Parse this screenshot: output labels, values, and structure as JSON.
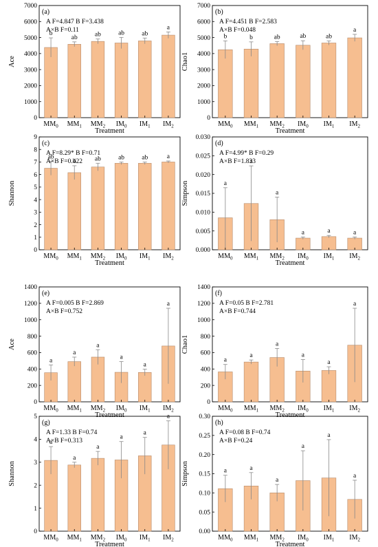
{
  "bar_color": "#F6BE90",
  "bar_edge": "#B58A6A",
  "error_color": "#888888",
  "chart_data": [
    {
      "type": "bar",
      "panel": "(a)",
      "ylabel": "Ace",
      "xlabel": "Treatment",
      "categories": [
        "MM0",
        "MM1",
        "MM2",
        "IM0",
        "IM1",
        "IM2"
      ],
      "ylim": [
        0,
        7000
      ],
      "yticks": [
        0,
        1000,
        2000,
        3000,
        4000,
        5000,
        6000,
        7000
      ],
      "values": [
        4380,
        4580,
        4760,
        4660,
        4790,
        5150
      ],
      "errors": [
        600,
        150,
        150,
        350,
        180,
        200
      ],
      "letters": [
        "b",
        "ab",
        "ab",
        "ab",
        "ab",
        "a"
      ],
      "stats": [
        "A F=4.847  B F=3.438",
        "A×B  F=0.11"
      ]
    },
    {
      "type": "bar",
      "panel": "(b)",
      "ylabel": "Chao1",
      "xlabel": "Treatment",
      "categories": [
        "MM0",
        "MM1",
        "MM2",
        "IM0",
        "IM1",
        "IM2"
      ],
      "ylim": [
        0,
        7000
      ],
      "yticks": [
        0,
        1000,
        2000,
        3000,
        4000,
        5000,
        6000,
        7000
      ],
      "values": [
        4240,
        4280,
        4620,
        4520,
        4660,
        4980
      ],
      "errors": [
        550,
        450,
        130,
        280,
        130,
        220
      ],
      "letters": [
        "b",
        "b",
        "ab",
        "ab",
        "ab",
        "a"
      ],
      "stats": [
        "A F=4.451  B F=2.583",
        "A×B F=0.048"
      ]
    },
    {
      "type": "bar",
      "panel": "(c)",
      "ylabel": "Shannon",
      "xlabel": "Treatment",
      "categories": [
        "MM0",
        "MM1",
        "MM2",
        "IM0",
        "IM1",
        "IM2"
      ],
      "ylim": [
        0,
        9
      ],
      "yticks": [
        0,
        1,
        2,
        3,
        4,
        5,
        6,
        7,
        8,
        9
      ],
      "values": [
        6.5,
        6.15,
        6.6,
        6.9,
        6.9,
        7.0
      ],
      "errors": [
        0.55,
        0.55,
        0.3,
        0.1,
        0.1,
        0.08
      ],
      "letters": [
        "ab",
        "b",
        "ab",
        "ab",
        "ab",
        "a"
      ],
      "stats": [
        "A F=8.29*  B F=0.71",
        "A×B F=0.422"
      ]
    },
    {
      "type": "bar",
      "panel": "(d)",
      "ylabel": "Simpson",
      "xlabel": "Treatment",
      "categories": [
        "MM0",
        "MM1",
        "MM2",
        "IM0",
        "IM1",
        "IM2"
      ],
      "ylim": [
        0,
        0.03
      ],
      "yticks": [
        0,
        0.005,
        0.01,
        0.015,
        0.02,
        0.025,
        0.03
      ],
      "values": [
        0.0085,
        0.0123,
        0.008,
        0.0031,
        0.0035,
        0.0031
      ],
      "errors": [
        0.008,
        0.01,
        0.006,
        0.0003,
        0.0003,
        0.0003
      ],
      "letters": [
        "a",
        "a",
        "a",
        "a",
        "a",
        "a"
      ],
      "stats": [
        "A F=4.99*  B  F=0.29",
        "A×B F=1.833"
      ]
    },
    {
      "type": "bar",
      "panel": "(e)",
      "ylabel": "Ace",
      "xlabel": "Treatment",
      "categories": [
        "MM0",
        "MM1",
        "MM2",
        "IM0",
        "IM1",
        "IM2"
      ],
      "ylim": [
        0,
        1400
      ],
      "yticks": [
        0,
        200,
        400,
        600,
        800,
        1000,
        1200,
        1400
      ],
      "values": [
        355,
        490,
        545,
        360,
        358,
        680
      ],
      "errors": [
        95,
        55,
        90,
        130,
        40,
        460
      ],
      "letters": [
        "a",
        "a",
        "a",
        "a",
        "a",
        "a"
      ],
      "stats": [
        "A F=0.005  B F=2.869",
        "A×B F=0.752"
      ]
    },
    {
      "type": "bar",
      "panel": "(f)",
      "ylabel": "Chao1",
      "xlabel": "Treatment",
      "categories": [
        "MM0",
        "MM1",
        "MM2",
        "IM0",
        "IM1",
        "IM2"
      ],
      "ylim": [
        0,
        1400
      ],
      "yticks": [
        0,
        200,
        400,
        600,
        800,
        1000,
        1200,
        1400
      ],
      "values": [
        365,
        485,
        540,
        375,
        382,
        690
      ],
      "errors": [
        90,
        25,
        110,
        140,
        45,
        450
      ],
      "letters": [
        "a",
        "a",
        "a",
        "a",
        "a",
        "a"
      ],
      "stats": [
        "A F=0.05  B F=2.781",
        "A×B F=0.744"
      ]
    },
    {
      "type": "bar",
      "panel": "(g)",
      "ylabel": "Shannon",
      "xlabel": "Treatment",
      "categories": [
        "MM0",
        "MM1",
        "MM2",
        "IM0",
        "IM1",
        "IM2"
      ],
      "ylim": [
        0,
        5
      ],
      "yticks": [
        0,
        1,
        2,
        3,
        4,
        5
      ],
      "values": [
        3.08,
        2.88,
        3.17,
        3.1,
        3.28,
        3.75
      ],
      "errors": [
        0.6,
        0.12,
        0.3,
        0.8,
        0.8,
        1.05
      ],
      "letters": [
        "a",
        "a",
        "a",
        "a",
        "a",
        "a"
      ],
      "stats": [
        "A F=1.33  B F=0.74",
        "A×B F=0.313"
      ]
    },
    {
      "type": "bar",
      "panel": "(h)",
      "ylabel": "Simpson",
      "xlabel": "Treatment",
      "categories": [
        "MM0",
        "MM1",
        "MM2",
        "IM0",
        "IM1",
        "IM2"
      ],
      "ylim": [
        0,
        0.3
      ],
      "yticks": [
        0,
        0.05,
        0.1,
        0.15,
        0.2,
        0.25,
        0.3
      ],
      "values": [
        0.111,
        0.118,
        0.1,
        0.132,
        0.139,
        0.083
      ],
      "errors": [
        0.035,
        0.035,
        0.022,
        0.078,
        0.1,
        0.05
      ],
      "letters": [
        "a",
        "a",
        "a",
        "a",
        "a",
        "a"
      ],
      "stats": [
        "A F=0.08  B F=0.74",
        "A×B F=0.24"
      ]
    }
  ]
}
